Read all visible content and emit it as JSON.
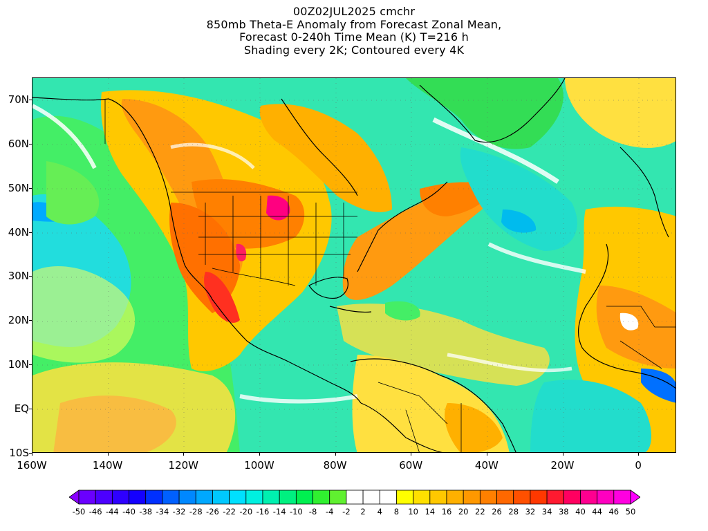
{
  "title": {
    "line1": "00Z02JUL2025 cmchr",
    "line2": "850mb Theta-E Anomaly from Forecast Zonal Mean,",
    "line3": "Forecast 0-240h Time Mean (K) T=216 h",
    "line4": "Shading every 2K; Contoured every 4K"
  },
  "map": {
    "projection": "cylindrical equidistant",
    "lon_range": [
      -160,
      10
    ],
    "lat_range": [
      -10,
      75
    ],
    "lat_labels": [
      "70N",
      "60N",
      "50N",
      "40N",
      "30N",
      "20N",
      "10N",
      "EQ",
      "10S"
    ],
    "lat_values": [
      70,
      60,
      50,
      40,
      30,
      20,
      10,
      0,
      -10
    ],
    "lon_labels": [
      "160W",
      "140W",
      "120W",
      "100W",
      "80W",
      "60W",
      "40W",
      "20W",
      "0"
    ],
    "lon_values": [
      -160,
      -140,
      -120,
      -100,
      -80,
      -60,
      -40,
      -20,
      0
    ]
  },
  "colorbar": {
    "labels": [
      "-50",
      "-46",
      "-44",
      "-40",
      "-38",
      "-34",
      "-32",
      "-28",
      "-26",
      "-22",
      "-20",
      "-16",
      "-14",
      "-10",
      "-8",
      "-4",
      "-2",
      "2",
      "4",
      "8",
      "10",
      "14",
      "16",
      "20",
      "22",
      "26",
      "28",
      "32",
      "34",
      "38",
      "40",
      "44",
      "46",
      "50"
    ],
    "colors": [
      "#8800ff",
      "#6a00ff",
      "#4c00ff",
      "#2e00ff",
      "#1400ff",
      "#0030ff",
      "#0060ff",
      "#0088ff",
      "#00a8ff",
      "#00c8ff",
      "#00e0ff",
      "#00f0e0",
      "#00f0b0",
      "#00f080",
      "#00f050",
      "#30f030",
      "#60f030",
      "#ffffff",
      "#ffffff",
      "#ffffff",
      "#ffff00",
      "#ffe000",
      "#ffc800",
      "#ffb000",
      "#ff9800",
      "#ff8000",
      "#ff6800",
      "#ff5000",
      "#ff3800",
      "#ff1a30",
      "#ff0060",
      "#ff0090",
      "#ff00c0",
      "#ff00e0",
      "#ff00ff"
    ]
  }
}
